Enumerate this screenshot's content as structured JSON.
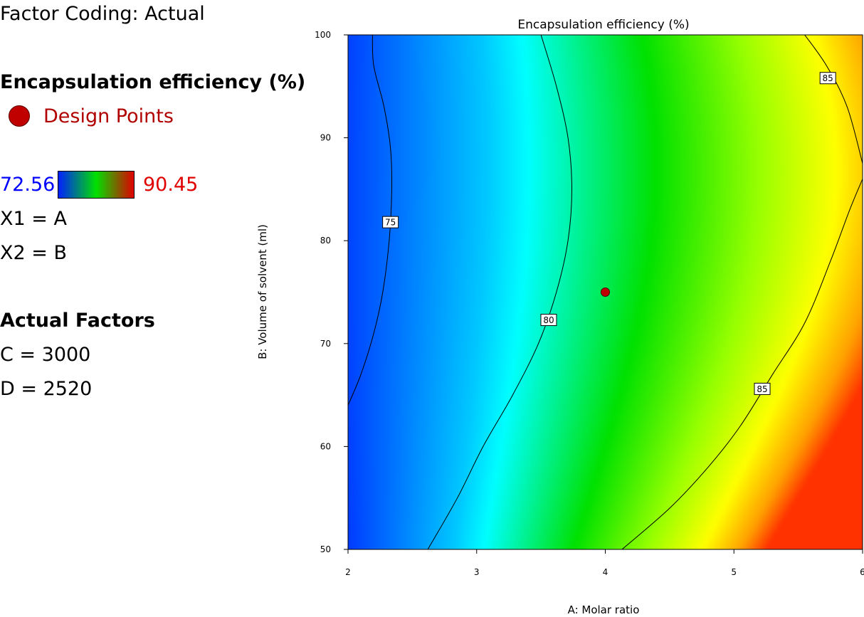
{
  "legend": {
    "factor_coding": "Factor Coding: Actual",
    "response_title": "Encapsulation efficiency (%)",
    "design_points_label": "Design Points",
    "scale_min": "72.56",
    "scale_max": "90.45",
    "x1_mapping": "X1 = A",
    "x2_mapping": "X2 = B",
    "actual_factors_title": "Actual Factors",
    "factor_c": "C = 3000",
    "factor_d": "D = 2520"
  },
  "colors": {
    "design_point": "#c00000",
    "scale_low": "#0020ff",
    "scale_mid": "#00e000",
    "scale_high": "#e00000"
  },
  "chart_data": {
    "type": "heatmap",
    "subtype": "contour",
    "title": "Encapsulation efficiency (%)",
    "xlabel": "A: Molar ratio",
    "ylabel": "B: Volume of solvent (ml)",
    "xlim": [
      2,
      6
    ],
    "ylim": [
      50,
      100
    ],
    "x_ticks": [
      2,
      3,
      4,
      5,
      6
    ],
    "y_ticks": [
      50,
      60,
      70,
      80,
      90,
      100
    ],
    "z_range": [
      72.56,
      90.45
    ],
    "contours": [
      {
        "level": 75,
        "label": "75",
        "label_at": [
          2.33,
          81.8
        ],
        "points": [
          [
            2.0,
            64
          ],
          [
            2.1,
            67
          ],
          [
            2.2,
            71
          ],
          [
            2.27,
            75
          ],
          [
            2.32,
            80
          ],
          [
            2.34,
            85
          ],
          [
            2.33,
            89
          ],
          [
            2.28,
            93
          ],
          [
            2.2,
            97
          ],
          [
            2.19,
            100
          ]
        ]
      },
      {
        "level": 80,
        "label": "80",
        "label_at": [
          3.56,
          72.3
        ],
        "points": [
          [
            2.62,
            50
          ],
          [
            2.85,
            55
          ],
          [
            3.05,
            60
          ],
          [
            3.28,
            65
          ],
          [
            3.48,
            70
          ],
          [
            3.62,
            75
          ],
          [
            3.71,
            80
          ],
          [
            3.74,
            85
          ],
          [
            3.71,
            90
          ],
          [
            3.62,
            95
          ],
          [
            3.5,
            100
          ]
        ]
      },
      {
        "level": 85,
        "label": "85",
        "label_at": [
          5.22,
          65.6
        ],
        "points": [
          [
            4.13,
            50
          ],
          [
            4.5,
            54
          ],
          [
            4.8,
            58
          ],
          [
            5.05,
            62
          ],
          [
            5.3,
            67
          ],
          [
            5.55,
            72
          ],
          [
            5.75,
            78
          ],
          [
            5.9,
            83
          ],
          [
            6.0,
            86
          ]
        ]
      },
      {
        "level": 85,
        "label": "85",
        "label_at": [
          5.73,
          95.8
        ],
        "points": [
          [
            6.0,
            87.5
          ],
          [
            5.88,
            93
          ],
          [
            5.72,
            97
          ],
          [
            5.55,
            100
          ]
        ]
      }
    ],
    "design_points": [
      {
        "x": 4,
        "y": 75
      }
    ]
  }
}
